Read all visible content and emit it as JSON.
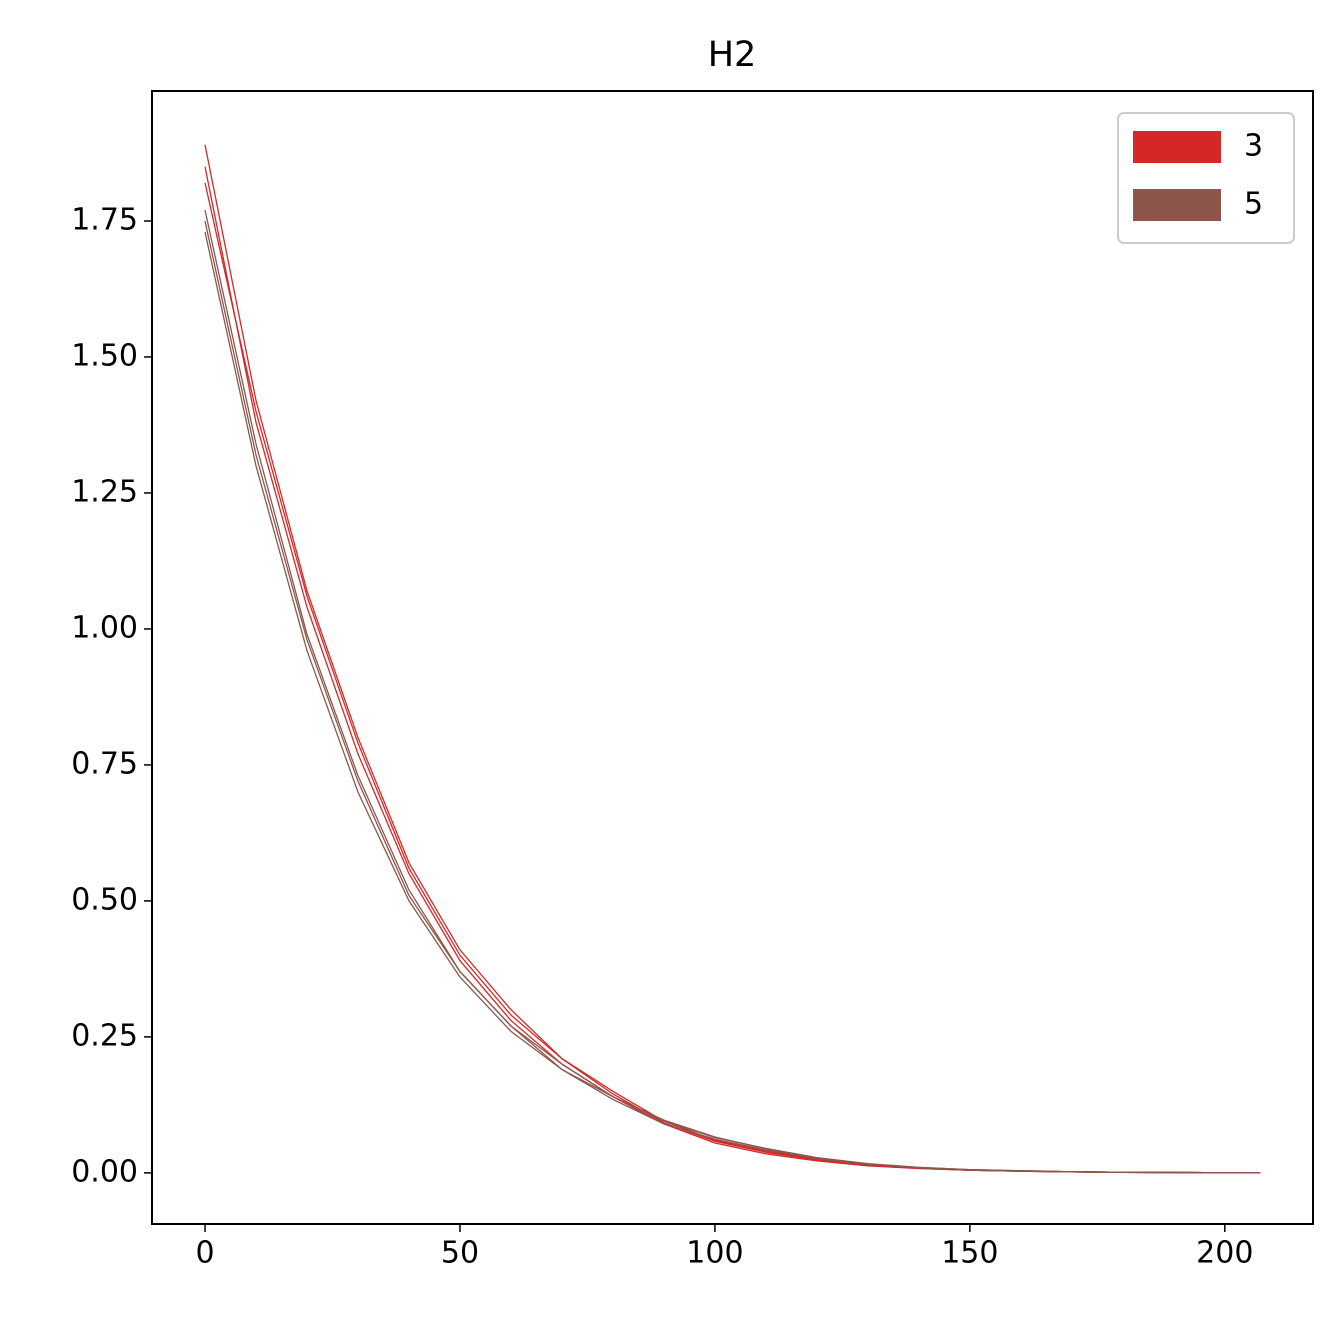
{
  "chart_data": {
    "type": "line",
    "title": "H2",
    "x": [
      0,
      10,
      20,
      30,
      40,
      50,
      60,
      70,
      80,
      90,
      100,
      110,
      120,
      130,
      140,
      150,
      160,
      170,
      180,
      190,
      200,
      207
    ],
    "series": [
      {
        "name": "3",
        "color": "#d62728",
        "runs": [
          [
            1.89,
            1.42,
            1.07,
            0.8,
            0.57,
            0.41,
            0.3,
            0.21,
            0.15,
            0.095,
            0.06,
            0.04,
            0.025,
            0.015,
            0.009,
            0.005,
            0.003,
            0.002,
            0.001,
            0.001,
            0.0,
            0.0
          ],
          [
            1.85,
            1.38,
            1.04,
            0.77,
            0.55,
            0.39,
            0.28,
            0.2,
            0.14,
            0.09,
            0.055,
            0.035,
            0.022,
            0.013,
            0.008,
            0.005,
            0.003,
            0.002,
            0.001,
            0.0,
            0.0,
            0.0
          ],
          [
            1.82,
            1.4,
            1.06,
            0.79,
            0.56,
            0.4,
            0.29,
            0.21,
            0.145,
            0.092,
            0.058,
            0.038,
            0.024,
            0.014,
            0.008,
            0.005,
            0.003,
            0.002,
            0.001,
            0.001,
            0.0,
            0.0
          ]
        ]
      },
      {
        "name": "5",
        "color": "#8c564b",
        "runs": [
          [
            1.77,
            1.34,
            0.99,
            0.73,
            0.52,
            0.37,
            0.27,
            0.19,
            0.14,
            0.095,
            0.065,
            0.045,
            0.028,
            0.017,
            0.01,
            0.006,
            0.004,
            0.002,
            0.001,
            0.001,
            0.0,
            0.0
          ],
          [
            1.73,
            1.3,
            0.96,
            0.7,
            0.5,
            0.36,
            0.26,
            0.19,
            0.135,
            0.09,
            0.062,
            0.042,
            0.026,
            0.016,
            0.009,
            0.005,
            0.003,
            0.002,
            0.001,
            0.0,
            0.0,
            0.0
          ],
          [
            1.75,
            1.32,
            0.98,
            0.72,
            0.51,
            0.37,
            0.27,
            0.2,
            0.14,
            0.097,
            0.066,
            0.044,
            0.027,
            0.016,
            0.01,
            0.006,
            0.004,
            0.002,
            0.001,
            0.001,
            0.0,
            0.0
          ]
        ]
      }
    ],
    "xlim": [
      -10.4,
      217.3
    ],
    "xticks": [
      0,
      50,
      100,
      150,
      200
    ],
    "ylim": [
      -0.094,
      1.989
    ],
    "yticks": [
      {
        "value": 0,
        "label": "0.00"
      },
      {
        "value": 0.25,
        "label": "0.25"
      },
      {
        "value": 0.5,
        "label": "0.50"
      },
      {
        "value": 0.75,
        "label": "0.75"
      },
      {
        "value": 1,
        "label": "1.00"
      },
      {
        "value": 1.25,
        "label": "1.25"
      },
      {
        "value": 1.5,
        "label": "1.50"
      },
      {
        "value": 1.75,
        "label": "1.75"
      }
    ],
    "legend": "upper-right"
  }
}
